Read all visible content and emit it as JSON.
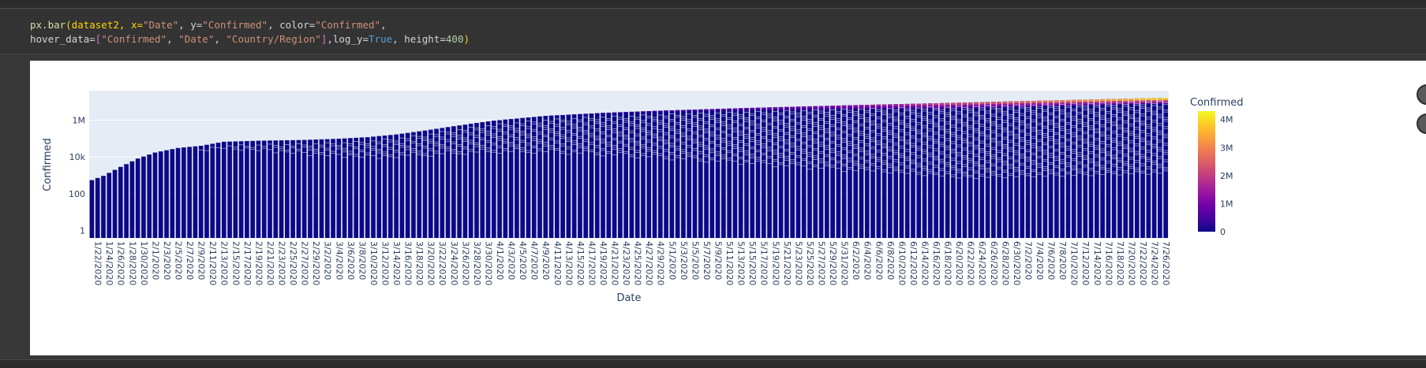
{
  "code": {
    "line1": {
      "fn": "px.bar",
      "p1": "(dataset2, x=",
      "s1": "\"Date\"",
      "p2": ", y=",
      "s2": "\"Confirmed\"",
      "p3": ", color=",
      "s3": "\"Confirmed\"",
      "p4": ","
    },
    "line2": {
      "p0": "hover_data=",
      "b1": "[",
      "s1": "\"Confirmed\"",
      "p1": ", ",
      "s2": "\"Date\"",
      "p2": ", ",
      "s3": "\"Country/Region\"",
      "b2": "]",
      "p3": ",log_y=",
      "kw": "True",
      "p4": ", height=",
      "num": "400",
      "p5": ")"
    }
  },
  "chart_data": {
    "type": "bar",
    "stacked": true,
    "log_y": true,
    "xlabel": "Date",
    "ylabel": "Confirmed",
    "start_date": "1/22/2020",
    "end_date": "7/27/2020",
    "x_tick_labels": [
      "1/22/2020",
      "1/24/2020",
      "1/26/2020",
      "1/28/2020",
      "1/30/2020",
      "2/1/2020",
      "2/3/2020",
      "2/5/2020",
      "2/7/2020",
      "2/9/2020",
      "2/11/2020",
      "2/13/2020",
      "2/15/2020",
      "2/17/2020",
      "2/19/2020",
      "2/21/2020",
      "2/23/2020",
      "2/25/2020",
      "2/27/2020",
      "2/29/2020",
      "3/2/2020",
      "3/4/2020",
      "3/6/2020",
      "3/8/2020",
      "3/10/2020",
      "3/12/2020",
      "3/14/2020",
      "3/16/2020",
      "3/18/2020",
      "3/20/2020",
      "3/22/2020",
      "3/24/2020",
      "3/26/2020",
      "3/28/2020",
      "3/30/2020",
      "4/1/2020",
      "4/3/2020",
      "4/5/2020",
      "4/7/2020",
      "4/9/2020",
      "4/11/2020",
      "4/13/2020",
      "4/15/2020",
      "4/17/2020",
      "4/19/2020",
      "4/21/2020",
      "4/23/2020",
      "4/25/2020",
      "4/27/2020",
      "4/29/2020",
      "5/1/2020",
      "5/3/2020",
      "5/5/2020",
      "5/7/2020",
      "5/9/2020",
      "5/11/2020",
      "5/13/2020",
      "5/15/2020",
      "5/17/2020",
      "5/19/2020",
      "5/21/2020",
      "5/23/2020",
      "5/25/2020",
      "5/27/2020",
      "5/29/2020",
      "5/31/2020",
      "6/2/2020",
      "6/4/2020",
      "6/6/2020",
      "6/8/2020",
      "6/10/2020",
      "6/12/2020",
      "6/14/2020",
      "6/16/2020",
      "6/18/2020",
      "6/20/2020",
      "6/22/2020",
      "6/24/2020",
      "6/26/2020",
      "6/28/2020",
      "6/30/2020",
      "7/2/2020",
      "7/4/2020",
      "7/6/2020",
      "7/8/2020",
      "7/10/2020",
      "7/12/2020",
      "7/14/2020",
      "7/16/2020",
      "7/18/2020",
      "7/20/2020",
      "7/22/2020",
      "7/24/2020",
      "7/26/2020"
    ],
    "y_ticks": [
      {
        "value": 1,
        "label": "1"
      },
      {
        "value": 100,
        "label": "100"
      },
      {
        "value": 10000,
        "label": "10k"
      },
      {
        "value": 1000000,
        "label": "1M"
      }
    ],
    "ylim": [
      0.4,
      40000000
    ],
    "total_anchors": [
      {
        "date": "1/22/2020",
        "value": 555
      },
      {
        "date": "1/24/2020",
        "value": 940
      },
      {
        "date": "1/27/2020",
        "value": 2900
      },
      {
        "date": "1/30/2020",
        "value": 8200
      },
      {
        "date": "2/2/2020",
        "value": 17400
      },
      {
        "date": "2/6/2020",
        "value": 30800
      },
      {
        "date": "2/10/2020",
        "value": 40500
      },
      {
        "date": "2/14/2020",
        "value": 67000
      },
      {
        "date": "2/20/2020",
        "value": 76200
      },
      {
        "date": "2/28/2020",
        "value": 84000
      },
      {
        "date": "3/5/2020",
        "value": 97900
      },
      {
        "date": "3/10/2020",
        "value": 119000
      },
      {
        "date": "3/15/2020",
        "value": 167000
      },
      {
        "date": "3/20/2020",
        "value": 272000
      },
      {
        "date": "3/25/2020",
        "value": 467000
      },
      {
        "date": "4/1/2020",
        "value": 932000
      },
      {
        "date": "4/10/2020",
        "value": 1690000
      },
      {
        "date": "4/20/2020",
        "value": 2470000
      },
      {
        "date": "5/1/2020",
        "value": 3340000
      },
      {
        "date": "5/15/2020",
        "value": 4540000
      },
      {
        "date": "6/1/2020",
        "value": 6300000
      },
      {
        "date": "6/15/2020",
        "value": 8000000
      },
      {
        "date": "7/1/2020",
        "value": 10600000
      },
      {
        "date": "7/15/2020",
        "value": 13400000
      },
      {
        "date": "7/27/2020",
        "value": 16500000
      }
    ],
    "colorbar": {
      "title": "Confirmed",
      "ticks": [
        {
          "value": 0,
          "label": "0"
        },
        {
          "value": 1000000,
          "label": "1M"
        },
        {
          "value": 2000000,
          "label": "2M"
        },
        {
          "value": 3000000,
          "label": "3M"
        },
        {
          "value": 4000000,
          "label": "4M"
        }
      ],
      "max": 4300000,
      "colors": [
        "#0d0887",
        "#46039f",
        "#7201a8",
        "#9c179e",
        "#bd3786",
        "#d8576b",
        "#ed7953",
        "#fb9f3a",
        "#fdca26",
        "#f0f921"
      ]
    },
    "plot_bg": "#e5ecf6",
    "bar_color": "#0d0887"
  }
}
